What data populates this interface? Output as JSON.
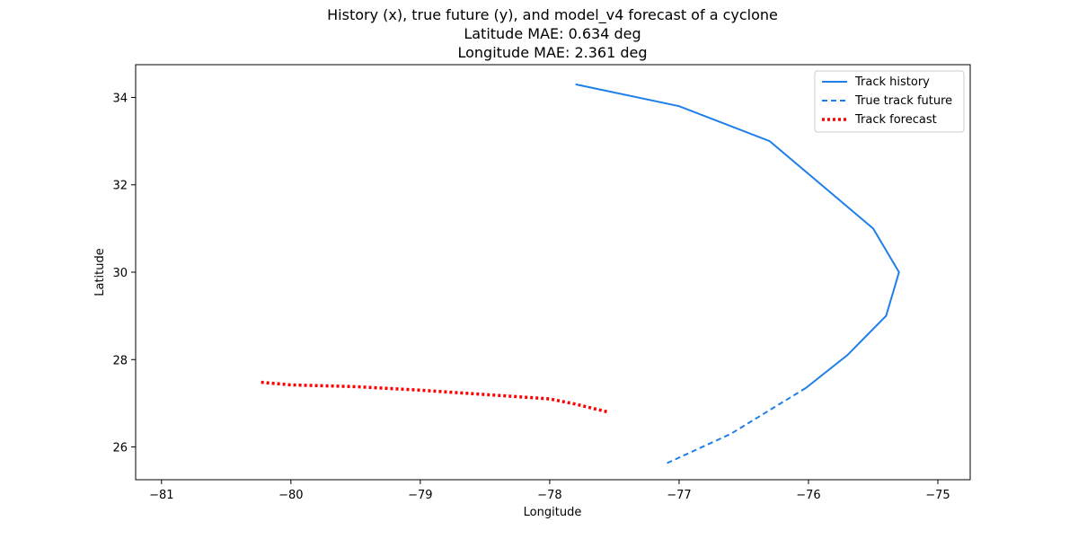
{
  "chart_data": {
    "type": "line",
    "title": "History (x), true future (y), and model_v4 forecast of a cyclone",
    "subtitle_lines": [
      "Latitude MAE: 0.634 deg",
      "Longitude MAE: 2.361 deg"
    ],
    "xlabel": "Longitude",
    "ylabel": "Latitude",
    "xlim": [
      -81.2,
      -74.75
    ],
    "ylim": [
      25.25,
      34.75
    ],
    "xticks": [
      -81,
      -80,
      -79,
      -78,
      -77,
      -76,
      -75
    ],
    "yticks": [
      26,
      28,
      30,
      32,
      34
    ],
    "legend_position": "top-right",
    "grid": false,
    "series": [
      {
        "name": "Track history",
        "style": "solid",
        "color": "#1f7fe8",
        "points": [
          [
            -77.8,
            34.3
          ],
          [
            -77.0,
            33.8
          ],
          [
            -76.3,
            33.0
          ],
          [
            -75.5,
            31.0
          ],
          [
            -75.3,
            30.0
          ],
          [
            -75.4,
            29.0
          ],
          [
            -75.7,
            28.1
          ],
          [
            -76.02,
            27.35
          ]
        ]
      },
      {
        "name": "True track future",
        "style": "dashed",
        "color": "#1f7fe8",
        "points": [
          [
            -76.02,
            27.35
          ],
          [
            -76.6,
            26.3
          ],
          [
            -77.1,
            25.62
          ]
        ]
      },
      {
        "name": "Track forecast",
        "style": "dotted",
        "color": "#ff0000",
        "points": [
          [
            -80.23,
            27.48
          ],
          [
            -80.0,
            27.42
          ],
          [
            -79.5,
            27.38
          ],
          [
            -79.0,
            27.3
          ],
          [
            -78.5,
            27.2
          ],
          [
            -78.0,
            27.1
          ],
          [
            -77.8,
            26.98
          ],
          [
            -77.55,
            26.8
          ]
        ]
      }
    ]
  }
}
